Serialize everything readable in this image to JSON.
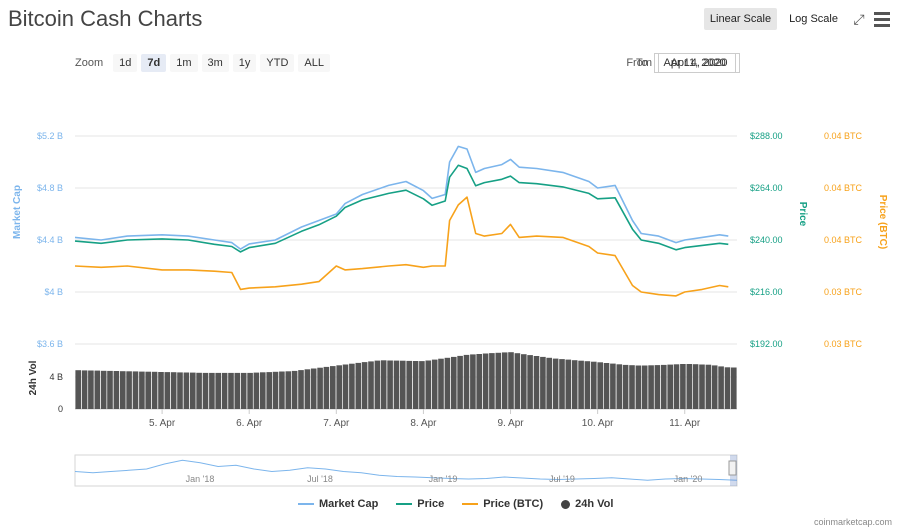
{
  "header": {
    "title": "Bitcoin Cash Charts"
  },
  "scale": {
    "linear": "Linear Scale",
    "log": "Log Scale"
  },
  "icons": {
    "fullscreen": "fullscreen-icon",
    "menu": "menu-icon"
  },
  "zoom": {
    "label": "Zoom",
    "options": [
      "1d",
      "7d",
      "1m",
      "3m",
      "1y",
      "YTD",
      "ALL"
    ],
    "selected": "7d"
  },
  "range": {
    "from_label": "From",
    "from_value": "Apr 4, 2020",
    "to_label": "To",
    "to_value": "Apr 11, 2020"
  },
  "colors": {
    "market_cap": "#7cb5ec",
    "price": "#16a085",
    "price_btc": "#f7a21b",
    "volume": "#555555"
  },
  "legend": [
    {
      "key": "market_cap",
      "label": "Market Cap"
    },
    {
      "key": "price",
      "label": "Price"
    },
    {
      "key": "price_btc",
      "label": "Price (BTC)"
    },
    {
      "key": "volume",
      "label": "24h Vol"
    }
  ],
  "credits": "coinmarketcap.com",
  "chart_data": {
    "type": "line",
    "x_ticks": [
      "5. Apr",
      "6. Apr",
      "7. Apr",
      "8. Apr",
      "9. Apr",
      "10. Apr",
      "11. Apr"
    ],
    "axes": {
      "market_cap": {
        "label": "Market Cap",
        "ticks": [
          "$5.2 B",
          "$4.8 B",
          "$4.4 B",
          "$4 B",
          "$3.6 B"
        ],
        "ylim": [
          3.6,
          5.2
        ]
      },
      "price": {
        "label": "Price",
        "ticks": [
          "$288.00",
          "$264.00",
          "$240.00",
          "$216.00",
          "$192.00"
        ],
        "ylim": [
          192,
          288
        ]
      },
      "price_btc": {
        "label": "Price (BTC)",
        "ticks": [
          "0.04 BTC",
          "0.04 BTC",
          "0.04 BTC",
          "0.03 BTC",
          "0.03 BTC"
        ]
      },
      "volume": {
        "label": "24h Vol",
        "ticks": [
          "4 B",
          "0"
        ],
        "ylim": [
          0,
          7.2
        ]
      }
    },
    "x_range_days": [
      4.0,
      11.6
    ],
    "series": [
      {
        "name": "Market Cap",
        "key": "market_cap",
        "unit": "B USD",
        "x": [
          4.0,
          4.3,
          4.6,
          5.0,
          5.3,
          5.6,
          5.8,
          5.9,
          6.0,
          6.3,
          6.6,
          6.8,
          7.0,
          7.1,
          7.3,
          7.6,
          7.8,
          8.0,
          8.1,
          8.25,
          8.3,
          8.4,
          8.5,
          8.6,
          8.7,
          8.9,
          9.0,
          9.1,
          9.3,
          9.6,
          9.9,
          10.0,
          10.2,
          10.4,
          10.5,
          10.7,
          10.9,
          11.0,
          11.2,
          11.4,
          11.5
        ],
        "y": [
          4.42,
          4.4,
          4.43,
          4.44,
          4.43,
          4.4,
          4.38,
          4.33,
          4.37,
          4.4,
          4.5,
          4.55,
          4.6,
          4.68,
          4.75,
          4.82,
          4.85,
          4.78,
          4.72,
          4.75,
          5.0,
          5.12,
          5.1,
          4.92,
          4.95,
          4.98,
          5.02,
          4.96,
          4.95,
          4.92,
          4.85,
          4.8,
          4.82,
          4.55,
          4.45,
          4.43,
          4.38,
          4.4,
          4.42,
          4.44,
          4.43
        ]
      },
      {
        "name": "Price",
        "key": "price",
        "unit": "USD",
        "x": [
          4.0,
          4.3,
          4.6,
          5.0,
          5.3,
          5.6,
          5.8,
          5.9,
          6.0,
          6.3,
          6.6,
          6.8,
          7.0,
          7.1,
          7.3,
          7.6,
          7.8,
          8.0,
          8.1,
          8.25,
          8.3,
          8.4,
          8.5,
          8.6,
          8.7,
          8.9,
          9.0,
          9.1,
          9.3,
          9.6,
          9.9,
          10.0,
          10.2,
          10.4,
          10.5,
          10.7,
          10.9,
          11.0,
          11.2,
          11.4,
          11.5
        ],
        "y": [
          239.5,
          238.5,
          240.0,
          240.5,
          240.0,
          238.0,
          237.0,
          234.5,
          236.5,
          238.5,
          244.0,
          247.0,
          251.0,
          255.0,
          258.5,
          261.5,
          263.0,
          259.0,
          256.0,
          258.0,
          269.0,
          274.5,
          273.0,
          265.0,
          266.5,
          268.0,
          269.5,
          266.5,
          266.0,
          264.5,
          261.5,
          259.0,
          259.5,
          245.0,
          240.0,
          238.5,
          235.5,
          236.5,
          237.5,
          238.5,
          238.0
        ]
      },
      {
        "name": "Price (BTC)",
        "key": "price_btc",
        "unit": "BTC-scaled",
        "x": [
          4.0,
          4.3,
          4.6,
          5.0,
          5.3,
          5.6,
          5.8,
          5.9,
          6.0,
          6.3,
          6.6,
          6.8,
          7.0,
          7.1,
          7.3,
          7.6,
          7.8,
          8.0,
          8.1,
          8.25,
          8.3,
          8.4,
          8.5,
          8.6,
          8.7,
          8.9,
          9.0,
          9.1,
          9.3,
          9.6,
          9.9,
          10.0,
          10.2,
          10.4,
          10.5,
          10.7,
          10.9,
          11.0,
          11.2,
          11.4,
          11.5
        ],
        "y": [
          4.2,
          4.19,
          4.2,
          4.17,
          4.17,
          4.16,
          4.15,
          4.02,
          4.03,
          4.04,
          4.06,
          4.08,
          4.2,
          4.17,
          4.18,
          4.2,
          4.21,
          4.19,
          4.2,
          4.2,
          4.55,
          4.67,
          4.73,
          4.45,
          4.43,
          4.45,
          4.52,
          4.42,
          4.43,
          4.42,
          4.35,
          4.3,
          4.28,
          4.05,
          4.0,
          3.98,
          3.97,
          4.0,
          4.02,
          4.05,
          4.04
        ]
      },
      {
        "name": "24h Vol",
        "key": "volume",
        "unit": "B USD",
        "x": [
          4.0,
          4.5,
          5.0,
          5.5,
          6.0,
          6.5,
          7.0,
          7.5,
          8.0,
          8.3,
          8.5,
          8.8,
          9.0,
          9.2,
          9.5,
          10.0,
          10.3,
          10.5,
          10.8,
          11.0,
          11.3,
          11.5
        ],
        "y": [
          4.3,
          4.2,
          4.1,
          4.0,
          4.0,
          4.2,
          4.8,
          5.4,
          5.3,
          5.7,
          6.0,
          6.2,
          6.3,
          6.0,
          5.6,
          5.2,
          4.9,
          4.8,
          4.9,
          5.0,
          4.9,
          4.6
        ]
      }
    ],
    "navigator": {
      "ticks": [
        "Jan '18",
        "Jul '18",
        "Jan '19",
        "Jul '19",
        "Jan '20"
      ]
    }
  }
}
